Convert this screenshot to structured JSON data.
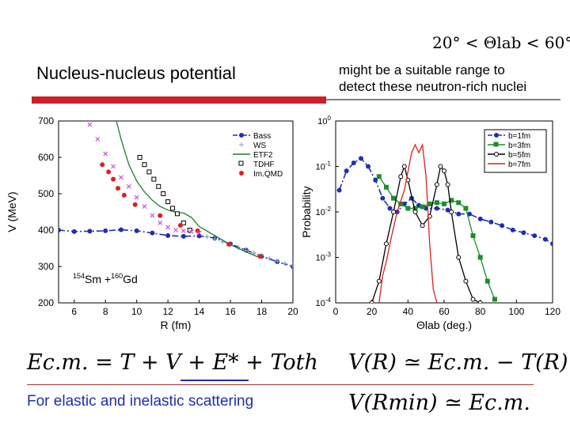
{
  "slide": {
    "title": "Nucleus-nucleus potential",
    "angle_range": "20° < Θlab < 60°",
    "note_line1": "might be a suitable range to",
    "note_line2": "detect these neutron-rich nuclei",
    "formula_ecm": "Ec.m. = T + V + E* + Toth",
    "formula_vr": "V(R) ≃ Ec.m. − T(R)",
    "formula_vrmin": "V(Rmin) ≃ Ec.m.",
    "footer": "For elastic and inelastic scattering",
    "accent_red": "#cc1f2a",
    "subtitle_blue": "#1f2fb0"
  },
  "chart_data": [
    {
      "type": "line",
      "xlabel": "R (fm)",
      "ylabel": "V (MeV)",
      "xlim": [
        5,
        20
      ],
      "ylim": [
        200,
        700
      ],
      "xticks": [
        "6",
        "8",
        "10",
        "12",
        "14",
        "16",
        "18",
        "20"
      ],
      "yticks": [
        "200",
        "300",
        "400",
        "500",
        "600",
        "700"
      ],
      "annotation": "154Sm +160Gd",
      "legend_position": "top-right",
      "series": [
        {
          "name": "Bass",
          "style": "dashdot",
          "color": "#1f2fb0",
          "x": [
            5,
            6,
            7,
            8,
            9,
            10,
            11,
            12,
            13,
            14,
            15,
            16,
            17,
            18,
            19,
            20
          ],
          "y": [
            400,
            396,
            397,
            398,
            401,
            398,
            392,
            385,
            383,
            384,
            378,
            362,
            345,
            328,
            313,
            300
          ]
        },
        {
          "name": "WS",
          "style": "markers-plus",
          "color": "#8fa0c8",
          "x": [
            14.5,
            15,
            15.5,
            16,
            16.5,
            17,
            17.5,
            18,
            18.5,
            19,
            19.5,
            20
          ],
          "y": [
            382,
            376,
            368,
            360,
            352,
            344,
            337,
            330,
            322,
            315,
            308,
            302
          ]
        },
        {
          "name": "ETF2",
          "style": "line",
          "color": "#1a7f2a",
          "x": [
            8.7,
            9,
            9.5,
            10,
            10.5,
            11,
            11.5,
            12,
            12.5,
            13,
            13.5,
            14,
            15,
            16,
            17,
            18
          ],
          "y": [
            700,
            650,
            580,
            535,
            505,
            482,
            465,
            455,
            449,
            447,
            435,
            410,
            385,
            360,
            340,
            322
          ]
        },
        {
          "name": "TDHF",
          "style": "markers-square",
          "color": "#000000",
          "x": [
            10.2,
            10.5,
            10.8,
            11.1,
            11.4,
            11.7,
            12.0,
            12.3,
            12.6,
            13.0,
            13.4
          ],
          "y": [
            600,
            580,
            560,
            540,
            520,
            500,
            478,
            460,
            445,
            420,
            400
          ]
        },
        {
          "name": "Im.QMD",
          "style": "markers-dot",
          "color": "#e21e1e",
          "x": [
            7.8,
            8.2,
            8.5,
            8.8,
            9.2,
            9.9,
            11.5,
            12.8,
            13.9,
            15.9,
            17.9
          ],
          "y": [
            580,
            560,
            540,
            515,
            496,
            470,
            440,
            413,
            398,
            361,
            328
          ]
        },
        {
          "name": "",
          "style": "markers-x",
          "color": "#d04fd4",
          "x": [
            7,
            7.5,
            8,
            8.5,
            9,
            9.5,
            10,
            10.5,
            11,
            11.5,
            12,
            12.5,
            13,
            13.5,
            14
          ],
          "y": [
            690,
            650,
            610,
            575,
            545,
            520,
            490,
            465,
            440,
            420,
            408,
            400,
            398,
            396,
            392
          ]
        }
      ]
    },
    {
      "type": "line",
      "xlabel": "Θlab (deg.)",
      "ylabel": "Probability",
      "xlim": [
        0,
        120
      ],
      "ylog": true,
      "ylim": [
        0.0001,
        1
      ],
      "xticks": [
        "0",
        "20",
        "40",
        "60",
        "80",
        "100",
        "120"
      ],
      "yticks": [
        "10-4",
        "10-3",
        "10-2",
        "10-1",
        "100"
      ],
      "legend_position": "top-right",
      "series": [
        {
          "name": "b=1fm",
          "style": "dashdot",
          "color": "#1f2fb0",
          "x": [
            2,
            6,
            10,
            14,
            18,
            22,
            26,
            30,
            34,
            38,
            42,
            46,
            50,
            56,
            62,
            68,
            74,
            80,
            86,
            92,
            98,
            104,
            110,
            116,
            120
          ],
          "y": [
            0.03,
            0.08,
            0.12,
            0.15,
            0.1,
            0.05,
            0.02,
            0.012,
            0.01,
            0.015,
            0.02,
            0.014,
            0.012,
            0.012,
            0.011,
            0.009,
            0.009,
            0.007,
            0.006,
            0.005,
            0.004,
            0.0035,
            0.003,
            0.0025,
            0.002
          ]
        },
        {
          "name": "b=3fm",
          "style": "line-markers-square",
          "color": "#1a8f2a",
          "x": [
            24,
            28,
            32,
            36,
            40,
            44,
            48,
            52,
            56,
            60,
            64,
            68,
            72,
            76,
            80,
            84,
            88
          ],
          "y": [
            0.06,
            0.035,
            0.02,
            0.015,
            0.012,
            0.012,
            0.013,
            0.015,
            0.016,
            0.015,
            0.018,
            0.016,
            0.012,
            0.003,
            0.001,
            0.0003,
            0.00012
          ]
        },
        {
          "name": "b=5fm",
          "style": "line-markers-circle",
          "color": "#000000",
          "x": [
            20,
            24,
            28,
            32,
            36,
            38,
            40,
            44,
            48,
            52,
            56,
            58,
            60,
            62,
            64,
            68,
            72,
            76,
            80
          ],
          "y": [
            0.0001,
            0.0003,
            0.002,
            0.01,
            0.06,
            0.1,
            0.05,
            0.01,
            0.005,
            0.008,
            0.04,
            0.1,
            0.08,
            0.04,
            0.01,
            0.001,
            0.0003,
            0.00012,
            0.0001
          ]
        },
        {
          "name": "b=7fm",
          "style": "line",
          "color": "#e21e1e",
          "x": [
            24,
            26,
            28,
            30,
            34,
            38,
            42,
            44,
            46,
            48,
            50,
            52,
            54,
            56
          ],
          "y": [
            0.0001,
            0.0004,
            0.0008,
            0.002,
            0.01,
            0.03,
            0.2,
            0.3,
            0.2,
            0.3,
            0.06,
            0.002,
            0.0002,
            0.0001
          ]
        }
      ]
    }
  ]
}
